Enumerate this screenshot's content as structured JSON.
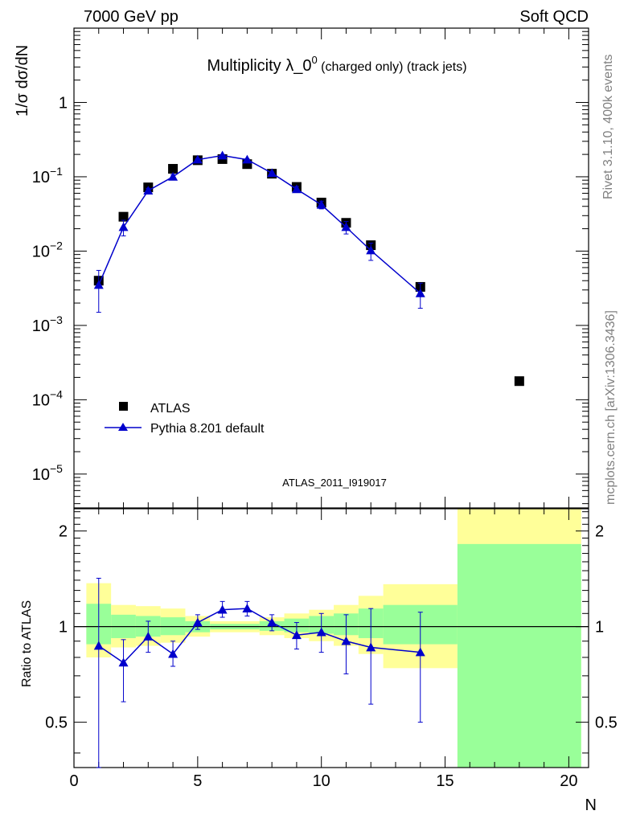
{
  "header": {
    "left": "7000 GeV pp",
    "right": "Soft QCD"
  },
  "side_labels": {
    "rivet": "Rivet 3.1.10,  400k events",
    "mcplots": "mcplots.cern.ch [arXiv:1306.3436]"
  },
  "main_plot": {
    "title": "Multiplicity λ_0",
    "title_sup": "0",
    "title_suffix": " (charged only) (track jets)",
    "ylabel": "1/σ dσ/dN",
    "watermark": "ATLAS_2011_I919017",
    "legend": [
      "ATLAS",
      "Pythia 8.201 default"
    ]
  },
  "ratio_plot": {
    "ylabel": "Ratio to ATLAS"
  },
  "xlabel": "N",
  "colors": {
    "mc": "#0000cc",
    "band_inner": "#99ff99",
    "band_outer": "#ffff99",
    "side_text": "#808080",
    "watermark": "#999999"
  },
  "chart_data": [
    {
      "type": "scatter",
      "yscale": "log",
      "xlim": [
        0,
        20.8
      ],
      "ylim": [
        3.5e-06,
        10
      ],
      "grid": false,
      "legend_position": "bottom-left",
      "x_ticks": [
        0,
        5,
        10,
        15,
        20
      ],
      "y_ticks": [
        {
          "value": 1e-05,
          "mant": "10",
          "exp": "−5"
        },
        {
          "value": 0.0001,
          "mant": "10",
          "exp": "−4"
        },
        {
          "value": 0.001,
          "mant": "10",
          "exp": "−3"
        },
        {
          "value": 0.01,
          "mant": "10",
          "exp": "−2"
        },
        {
          "value": 0.1,
          "mant": "10",
          "exp": "−1"
        },
        {
          "value": 1,
          "mant": "1",
          "exp": ""
        }
      ],
      "series": [
        {
          "name": "ATLAS",
          "marker": "square",
          "x": [
            1,
            2,
            3,
            4,
            5,
            6,
            7,
            8,
            9,
            10,
            11,
            12,
            14,
            18
          ],
          "y": [
            0.004,
            0.029,
            0.072,
            0.128,
            0.167,
            0.173,
            0.148,
            0.11,
            0.073,
            0.045,
            0.024,
            0.012,
            0.0033,
            0.000178
          ]
        },
        {
          "name": "Pythia 8.201 default",
          "marker": "triangle",
          "x": [
            1,
            2,
            3,
            4,
            5,
            6,
            7,
            8,
            9,
            10,
            11,
            12,
            14
          ],
          "y": [
            0.0035,
            0.021,
            0.065,
            0.1,
            0.17,
            0.193,
            0.17,
            0.112,
            0.068,
            0.042,
            0.021,
            0.0102,
            0.0027
          ],
          "yerr_low": [
            0.0015,
            0.016,
            0.06,
            0.093,
            0.165,
            0.189,
            0.166,
            0.108,
            0.063,
            0.037,
            0.017,
            0.0075,
            0.0017
          ],
          "yerr_high": [
            0.0055,
            0.026,
            0.07,
            0.107,
            0.175,
            0.197,
            0.174,
            0.116,
            0.074,
            0.047,
            0.025,
            0.0128,
            0.0037
          ]
        }
      ]
    },
    {
      "type": "scatter",
      "yscale": "log",
      "xlim": [
        0,
        20.8
      ],
      "ylim": [
        0.36,
        2.35
      ],
      "grid": false,
      "x_ticks": [
        0,
        5,
        10,
        15,
        20
      ],
      "y_ticks": [
        0.5,
        1,
        2
      ],
      "reference_line": 1,
      "bands": [
        {
          "x0": 0.5,
          "x1": 1.5,
          "inner": [
            0.88,
            1.18
          ],
          "outer": [
            0.8,
            1.37
          ]
        },
        {
          "x0": 1.5,
          "x1": 2.5,
          "inner": [
            0.92,
            1.09
          ],
          "outer": [
            0.86,
            1.17
          ]
        },
        {
          "x0": 2.5,
          "x1": 3.5,
          "inner": [
            0.93,
            1.08
          ],
          "outer": [
            0.87,
            1.16
          ]
        },
        {
          "x0": 3.5,
          "x1": 4.5,
          "inner": [
            0.94,
            1.07
          ],
          "outer": [
            0.89,
            1.14
          ]
        },
        {
          "x0": 4.5,
          "x1": 5.5,
          "inner": [
            0.96,
            1.04
          ],
          "outer": [
            0.93,
            1.08
          ]
        },
        {
          "x0": 5.5,
          "x1": 6.5,
          "inner": [
            0.98,
            1.02
          ],
          "outer": [
            0.96,
            1.04
          ]
        },
        {
          "x0": 6.5,
          "x1": 7.5,
          "inner": [
            0.98,
            1.02
          ],
          "outer": [
            0.96,
            1.04
          ]
        },
        {
          "x0": 7.5,
          "x1": 8.5,
          "inner": [
            0.97,
            1.04
          ],
          "outer": [
            0.94,
            1.07
          ]
        },
        {
          "x0": 8.5,
          "x1": 9.5,
          "inner": [
            0.96,
            1.06
          ],
          "outer": [
            0.92,
            1.1
          ]
        },
        {
          "x0": 9.5,
          "x1": 10.5,
          "inner": [
            0.95,
            1.08
          ],
          "outer": [
            0.9,
            1.13
          ]
        },
        {
          "x0": 10.5,
          "x1": 11.5,
          "inner": [
            0.94,
            1.1
          ],
          "outer": [
            0.87,
            1.17
          ]
        },
        {
          "x0": 11.5,
          "x1": 12.5,
          "inner": [
            0.92,
            1.14
          ],
          "outer": [
            0.82,
            1.25
          ]
        },
        {
          "x0": 12.5,
          "x1": 15.5,
          "inner": [
            0.88,
            1.17
          ],
          "outer": [
            0.74,
            1.36
          ]
        },
        {
          "x0": 15.5,
          "x1": 20.5,
          "inner": [
            0.36,
            1.82
          ],
          "outer": [
            0.36,
            2.35
          ]
        }
      ],
      "series": [
        {
          "name": "Pythia 8.201 default",
          "marker": "triangle",
          "x": [
            1,
            2,
            3,
            4,
            5,
            6,
            7,
            8,
            9,
            10,
            11,
            12,
            14
          ],
          "y": [
            0.87,
            0.77,
            0.93,
            0.82,
            1.03,
            1.13,
            1.14,
            1.03,
            0.94,
            0.96,
            0.9,
            0.86,
            0.83
          ],
          "yerr_low": [
            0.36,
            0.58,
            0.83,
            0.75,
            0.98,
            1.07,
            1.08,
            0.97,
            0.85,
            0.83,
            0.71,
            0.57,
            0.5
          ],
          "yerr_high": [
            1.42,
            0.91,
            1.04,
            0.9,
            1.09,
            1.2,
            1.2,
            1.09,
            1.03,
            1.1,
            1.09,
            1.14,
            1.11
          ]
        }
      ]
    }
  ]
}
